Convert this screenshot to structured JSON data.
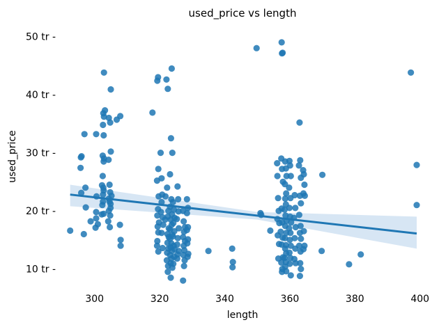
{
  "chart_data": {
    "type": "scatter",
    "title": "used_price vs length",
    "xlabel": "length",
    "ylabel": "used_price",
    "xlim": [
      290,
      402
    ],
    "ylim": [
      6,
      51.5
    ],
    "grid": false,
    "x_ticks": [
      300,
      320,
      340,
      360,
      380,
      400
    ],
    "x_tick_labels": [
      "300",
      "320",
      "340",
      "360",
      "380",
      "400"
    ],
    "y_ticks": [
      10,
      20,
      30,
      40,
      50
    ],
    "y_tick_labels": [
      "10 tr -",
      "20 tr -",
      "30 tr -",
      "40 tr -",
      "50 tr -"
    ],
    "point_color": "#1f77b4",
    "line_color": "#1f77b4",
    "band_color": "#c6dbef",
    "regression": {
      "x": [
        292.5,
        399
      ],
      "y": [
        22.8,
        16.1
      ],
      "ci_upper": [
        24.5,
        19.0
      ],
      "ci_lower": [
        20.8,
        13.5
      ],
      "ci_mid_x": 350,
      "ci_mid_upper": 19.8,
      "ci_mid_lower": 18.5
    },
    "points": [
      [
        292.5,
        16.6
      ],
      [
        295.8,
        29.2
      ],
      [
        295.7,
        27.4
      ],
      [
        296.0,
        29.4
      ],
      [
        296.7,
        16.0
      ],
      [
        296.9,
        33.2
      ],
      [
        297.3,
        20.6
      ],
      [
        297.2,
        24.0
      ],
      [
        295.9,
        23.1
      ],
      [
        298.8,
        18.2
      ],
      [
        300.3,
        17.1
      ],
      [
        300.5,
        33.2
      ],
      [
        300.6,
        22.5
      ],
      [
        300.5,
        18.7
      ],
      [
        300.5,
        19.8
      ],
      [
        301.0,
        17.7
      ],
      [
        302.2,
        19.4
      ],
      [
        302.4,
        21.0
      ],
      [
        302.6,
        21.6
      ],
      [
        302.8,
        19.5
      ],
      [
        302.5,
        26.0
      ],
      [
        302.8,
        28.5
      ],
      [
        302.5,
        29.5
      ],
      [
        302.9,
        29.0
      ],
      [
        302.7,
        24.0
      ],
      [
        302.3,
        24.4
      ],
      [
        302.8,
        23.5
      ],
      [
        302.6,
        22.8
      ],
      [
        302.8,
        33.0
      ],
      [
        302.6,
        34.8
      ],
      [
        302.9,
        36.2
      ],
      [
        302.7,
        36.8
      ],
      [
        303.2,
        37.3
      ],
      [
        302.9,
        43.8
      ],
      [
        304.4,
        36.0
      ],
      [
        304.8,
        35.2
      ],
      [
        305.0,
        30.2
      ],
      [
        304.3,
        28.8
      ],
      [
        304.6,
        24.5
      ],
      [
        304.8,
        23.2
      ],
      [
        304.4,
        22.1
      ],
      [
        304.6,
        21.6
      ],
      [
        304.9,
        21.2
      ],
      [
        304.4,
        20.0
      ],
      [
        304.8,
        19.2
      ],
      [
        304.2,
        18.2
      ],
      [
        304.7,
        17.2
      ],
      [
        304.9,
        20.5
      ],
      [
        305.2,
        22.6
      ],
      [
        305.0,
        40.9
      ],
      [
        306.8,
        35.7
      ],
      [
        307.9,
        36.3
      ],
      [
        307.8,
        17.6
      ],
      [
        308.0,
        15.0
      ],
      [
        308.0,
        14.0
      ],
      [
        317.8,
        36.9
      ],
      [
        319.3,
        42.4
      ],
      [
        319.5,
        43.0
      ],
      [
        319.6,
        27.2
      ],
      [
        319.2,
        25.2
      ],
      [
        319.7,
        22.5
      ],
      [
        319.5,
        20.3
      ],
      [
        319.3,
        19.2
      ],
      [
        319.8,
        18.0
      ],
      [
        319.4,
        17.3
      ],
      [
        319.6,
        16.3
      ],
      [
        319.3,
        14.8
      ],
      [
        319.2,
        14.0
      ],
      [
        319.6,
        13.0
      ],
      [
        320.3,
        30.0
      ],
      [
        320.6,
        25.6
      ],
      [
        320.8,
        22.8
      ],
      [
        320.6,
        21.5
      ],
      [
        320.4,
        19.8
      ],
      [
        320.9,
        18.9
      ],
      [
        321.1,
        17.6
      ],
      [
        320.6,
        16.2
      ],
      [
        320.9,
        13.6
      ],
      [
        322.1,
        42.6
      ],
      [
        322.5,
        41.0
      ],
      [
        322.3,
        24.0
      ],
      [
        321.8,
        22.5
      ],
      [
        322.7,
        20.0
      ],
      [
        322.5,
        19.0
      ],
      [
        321.7,
        18.5
      ],
      [
        322.8,
        17.0
      ],
      [
        322.4,
        16.0
      ],
      [
        322.8,
        15.5
      ],
      [
        322.4,
        14.5
      ],
      [
        322.7,
        13.5
      ],
      [
        322.3,
        12.8
      ],
      [
        322.2,
        11.5
      ],
      [
        322.6,
        10.5
      ],
      [
        322.5,
        9.5
      ],
      [
        323.7,
        44.5
      ],
      [
        323.5,
        32.5
      ],
      [
        323.9,
        30.0
      ],
      [
        323.2,
        26.3
      ],
      [
        323.6,
        22.0
      ],
      [
        323.2,
        20.7
      ],
      [
        323.8,
        19.4
      ],
      [
        323.4,
        18.5
      ],
      [
        323.7,
        17.6
      ],
      [
        323.2,
        16.8
      ],
      [
        323.9,
        15.9
      ],
      [
        323.2,
        15.2
      ],
      [
        323.6,
        14.4
      ],
      [
        323.4,
        13.7
      ],
      [
        323.8,
        13.1
      ],
      [
        323.2,
        12.4
      ],
      [
        323.6,
        11.8
      ],
      [
        323.4,
        11.0
      ],
      [
        323.9,
        10.2
      ],
      [
        323.4,
        8.5
      ],
      [
        324.1,
        21.5
      ],
      [
        324.4,
        20.2
      ],
      [
        324.6,
        18.8
      ],
      [
        324.2,
        17.9
      ],
      [
        324.5,
        16.5
      ],
      [
        324.1,
        15.6
      ],
      [
        324.3,
        14.0
      ],
      [
        324.6,
        13.4
      ],
      [
        324.5,
        12.1
      ],
      [
        324.2,
        10.9
      ],
      [
        325.5,
        24.2
      ],
      [
        325.7,
        22.0
      ],
      [
        325.8,
        19.9
      ],
      [
        325.3,
        18.6
      ],
      [
        325.9,
        17.0
      ],
      [
        325.6,
        15.3
      ],
      [
        325.4,
        14.2
      ],
      [
        325.9,
        13.1
      ],
      [
        325.5,
        12.5
      ],
      [
        325.4,
        11.8
      ],
      [
        327.2,
        20.0
      ],
      [
        327.4,
        18.2
      ],
      [
        327.8,
        17.2
      ],
      [
        327.5,
        16.4
      ],
      [
        327.2,
        15.5
      ],
      [
        327.8,
        14.8
      ],
      [
        327.4,
        14.0
      ],
      [
        327.6,
        13.2
      ],
      [
        327.3,
        12.4
      ],
      [
        327.7,
        11.5
      ],
      [
        327.5,
        10.5
      ],
      [
        327.2,
        8.0
      ],
      [
        328.4,
        22.0
      ],
      [
        328.7,
        20.5
      ],
      [
        328.4,
        19.6
      ],
      [
        328.7,
        17.2
      ],
      [
        328.4,
        16.7
      ],
      [
        328.7,
        15.1
      ],
      [
        328.5,
        14.4
      ],
      [
        328.8,
        12.6
      ],
      [
        328.6,
        12.1
      ],
      [
        335.0,
        13.1
      ],
      [
        342.3,
        13.5
      ],
      [
        342.5,
        11.2
      ],
      [
        342.4,
        10.3
      ],
      [
        349.8,
        48.0
      ],
      [
        351.0,
        19.6
      ],
      [
        351.2,
        19.3
      ],
      [
        354.0,
        16.6
      ],
      [
        356.1,
        28.2
      ],
      [
        356.2,
        26.0
      ],
      [
        356.4,
        22.2
      ],
      [
        356.6,
        20.0
      ],
      [
        356.2,
        18.6
      ],
      [
        356.8,
        17.9
      ],
      [
        356.3,
        15.8
      ],
      [
        356.7,
        14.3
      ],
      [
        356.5,
        11.8
      ],
      [
        357.5,
        49.0
      ],
      [
        357.8,
        47.2
      ],
      [
        357.6,
        47.1
      ],
      [
        357.4,
        29.0
      ],
      [
        357.6,
        27.2
      ],
      [
        357.9,
        25.0
      ],
      [
        357.5,
        20.4
      ],
      [
        357.7,
        18.0
      ],
      [
        357.2,
        16.4
      ],
      [
        357.8,
        15.4
      ],
      [
        357.5,
        14.2
      ],
      [
        357.9,
        12.0
      ],
      [
        357.4,
        11.1
      ],
      [
        357.7,
        10.0
      ],
      [
        357.6,
        9.5
      ],
      [
        358.6,
        28.5
      ],
      [
        358.8,
        27.3
      ],
      [
        359.0,
        26.0
      ],
      [
        358.5,
        24.6
      ],
      [
        358.9,
        23.0
      ],
      [
        358.6,
        22.1
      ],
      [
        358.8,
        21.1
      ],
      [
        358.4,
        20.2
      ],
      [
        358.7,
        19.2
      ],
      [
        359.0,
        18.3
      ],
      [
        358.6,
        17.4
      ],
      [
        358.9,
        16.2
      ],
      [
        358.5,
        15.3
      ],
      [
        358.8,
        14.1
      ],
      [
        358.6,
        13.5
      ],
      [
        358.9,
        12.7
      ],
      [
        358.4,
        11.9
      ],
      [
        358.8,
        11.2
      ],
      [
        358.6,
        10.4
      ],
      [
        358.9,
        9.6
      ],
      [
        359.9,
        28.6
      ],
      [
        360.1,
        27.8
      ],
      [
        360.3,
        26.0
      ],
      [
        359.8,
        24.0
      ],
      [
        360.2,
        22.2
      ],
      [
        359.9,
        20.5
      ],
      [
        360.1,
        19.0
      ],
      [
        360.4,
        18.0
      ],
      [
        359.8,
        17.0
      ],
      [
        360.2,
        16.2
      ],
      [
        360.0,
        15.0
      ],
      [
        360.3,
        14.0
      ],
      [
        359.9,
        12.8
      ],
      [
        360.2,
        11.9
      ],
      [
        360.0,
        10.9
      ],
      [
        360.3,
        8.9
      ],
      [
        361.5,
        22.7
      ],
      [
        361.7,
        20.5
      ],
      [
        361.3,
        18.8
      ],
      [
        361.8,
        17.2
      ],
      [
        361.5,
        15.3
      ],
      [
        361.7,
        13.5
      ],
      [
        361.4,
        11.7
      ],
      [
        361.8,
        11.0
      ],
      [
        363.0,
        35.2
      ],
      [
        363.2,
        28.7
      ],
      [
        362.8,
        27.8
      ],
      [
        363.4,
        25.7
      ],
      [
        363.1,
        22.6
      ],
      [
        363.4,
        21.3
      ],
      [
        362.9,
        19.3
      ],
      [
        363.3,
        17.4
      ],
      [
        363.1,
        16.2
      ],
      [
        363.4,
        15.2
      ],
      [
        362.9,
        14.0
      ],
      [
        363.3,
        13.0
      ],
      [
        363.2,
        11.0
      ],
      [
        363.4,
        10.0
      ],
      [
        363.1,
        8.8
      ],
      [
        364.1,
        27.0
      ],
      [
        364.3,
        26.3
      ],
      [
        364.5,
        24.5
      ],
      [
        364.2,
        23.0
      ],
      [
        364.6,
        22.6
      ],
      [
        364.3,
        16.5
      ],
      [
        364.5,
        14.0
      ],
      [
        364.2,
        13.4
      ],
      [
        370.0,
        26.2
      ],
      [
        369.8,
        13.1
      ],
      [
        378.2,
        10.8
      ],
      [
        381.8,
        12.5
      ],
      [
        397.2,
        43.8
      ],
      [
        399.0,
        27.9
      ],
      [
        399.0,
        21.0
      ]
    ]
  }
}
